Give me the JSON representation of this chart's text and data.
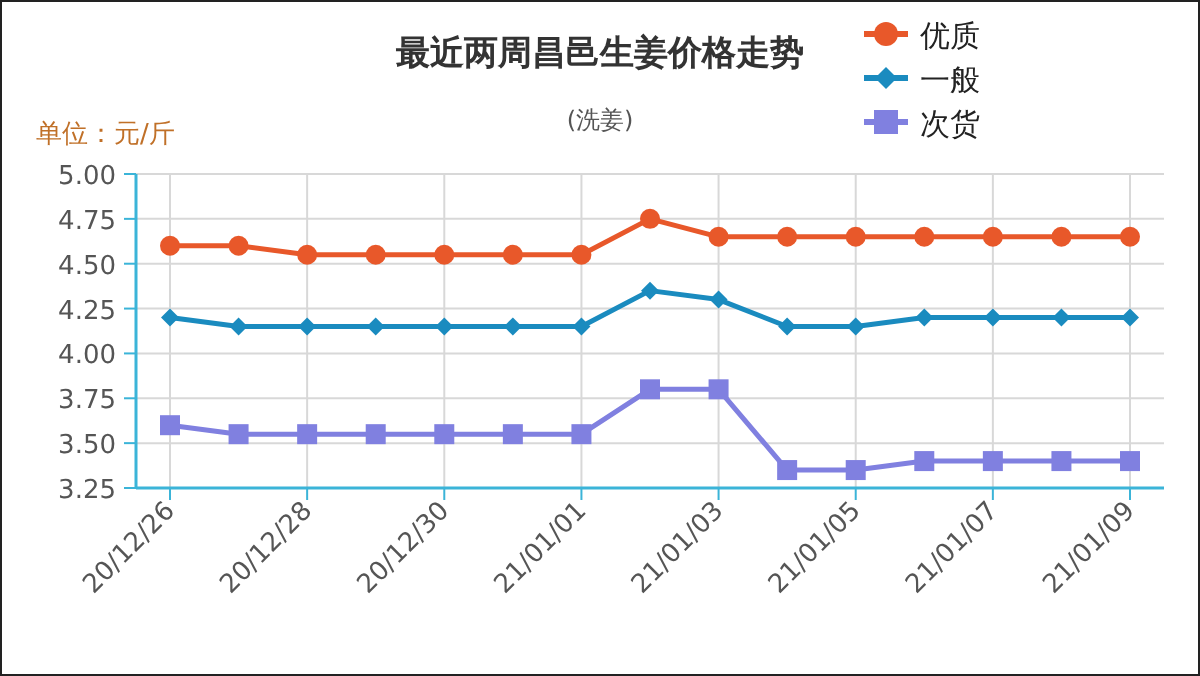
{
  "chart_data": {
    "type": "line",
    "title": "最近两周昌邑生姜价格走势",
    "subtitle": "(洗姜)",
    "ylabel": "单位：元/斤",
    "categories": [
      "20/12/26",
      null,
      "20/12/28",
      null,
      "20/12/30",
      null,
      "21/01/01",
      null,
      "21/01/03",
      null,
      "21/01/05",
      null,
      "21/01/07",
      null,
      "21/01/09"
    ],
    "series": [
      {
        "name": "优质",
        "color": "#e8582a",
        "marker": "circle",
        "values": [
          4.6,
          4.6,
          4.55,
          4.55,
          4.55,
          4.55,
          4.55,
          4.75,
          4.65,
          4.65,
          4.65,
          4.65,
          4.65,
          4.65,
          4.65
        ]
      },
      {
        "name": "一般",
        "color": "#1a8bbf",
        "marker": "diamond",
        "values": [
          4.2,
          4.15,
          4.15,
          4.15,
          4.15,
          4.15,
          4.15,
          4.35,
          4.3,
          4.15,
          4.15,
          4.2,
          4.2,
          4.2,
          4.2
        ]
      },
      {
        "name": "次货",
        "color": "#8080e0",
        "marker": "square",
        "values": [
          3.6,
          3.55,
          3.55,
          3.55,
          3.55,
          3.55,
          3.55,
          3.8,
          3.8,
          3.35,
          3.35,
          3.4,
          3.4,
          3.4,
          3.4
        ]
      }
    ],
    "ylim": [
      3.25,
      5
    ],
    "yticks": [
      {
        "value": 3.25,
        "label": "3.25"
      },
      {
        "value": 3.5,
        "label": "3.50"
      },
      {
        "value": 3.75,
        "label": "3.75"
      },
      {
        "value": 4,
        "label": "4.00"
      },
      {
        "value": 4.25,
        "label": "4.25"
      },
      {
        "value": 4.5,
        "label": "4.50"
      },
      {
        "value": 4.75,
        "label": "4.75"
      },
      {
        "value": 5,
        "label": "5.00"
      }
    ],
    "grid": true,
    "legend": "top right"
  }
}
